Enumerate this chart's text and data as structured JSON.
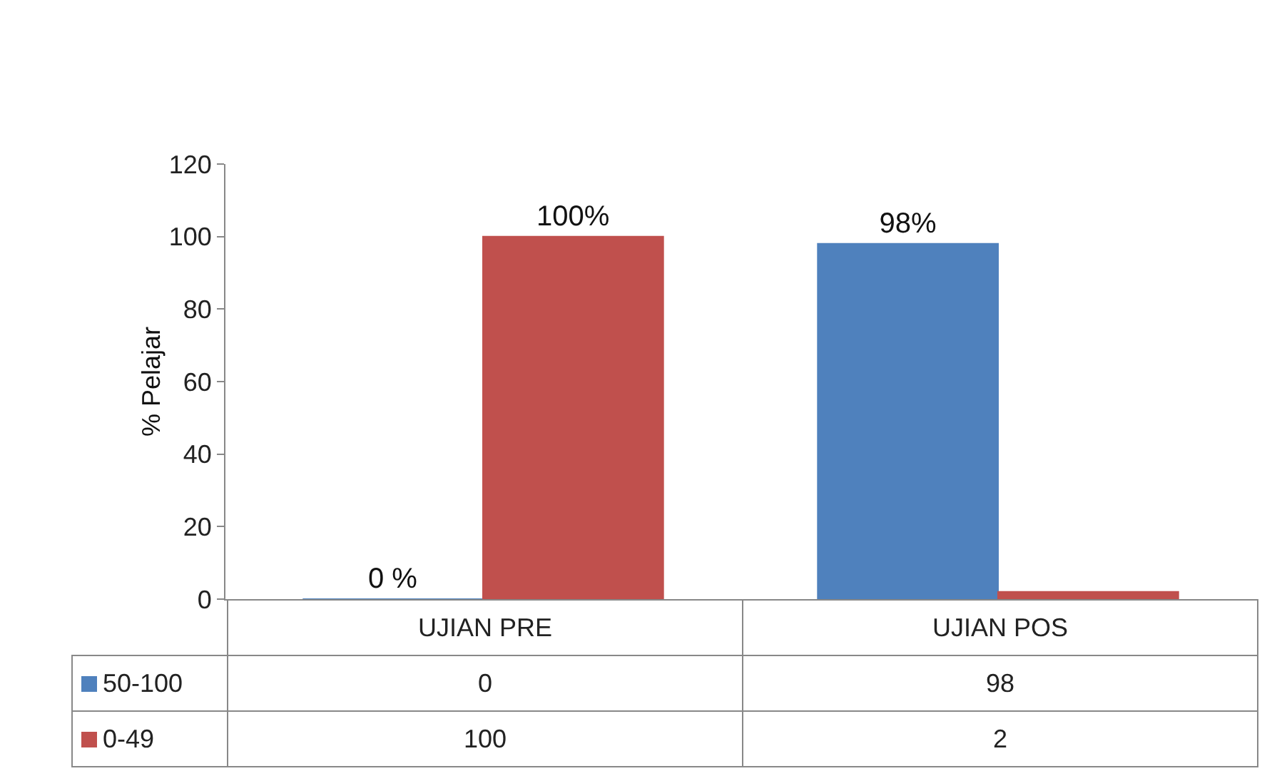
{
  "chart_data": {
    "type": "bar",
    "ylabel": "% Pelajar",
    "categories": [
      "UJIAN PRE",
      "UJIAN POS"
    ],
    "series": [
      {
        "name": "50-100",
        "color": "#4f81bd",
        "values": [
          0,
          98
        ],
        "value_labels": [
          "0 %",
          "98%"
        ]
      },
      {
        "name": "0-49",
        "color": "#c0504d",
        "values": [
          100,
          2
        ],
        "value_labels": [
          "100%",
          null
        ]
      }
    ],
    "annotations": [
      "0",
      "98",
      "100",
      "2"
    ],
    "ylim": [
      0,
      120
    ],
    "yticks": [
      0,
      20,
      40,
      60,
      80,
      100,
      120
    ],
    "grid": false,
    "legend": "bottom",
    "data_labels": true
  }
}
